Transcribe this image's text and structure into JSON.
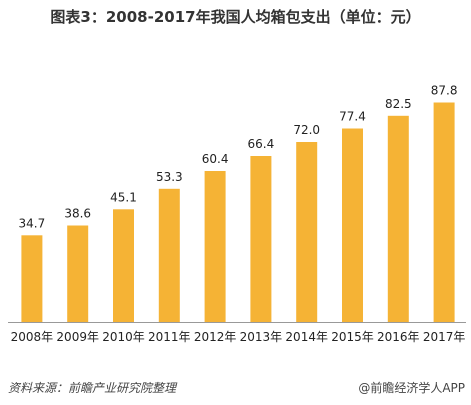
{
  "title": "图表3：2008-2017年我国人均箱包支出（单位：元）",
  "source": "资料来源：前瞻产业研究院整理",
  "brand": "@前瞻经济学人APP",
  "colors": {
    "bar": "#F5B335",
    "axis": "#999999",
    "text": "#222222"
  },
  "chart_data": {
    "type": "bar",
    "title": "图表3：2008-2017年我国人均箱包支出（单位：元）",
    "categories": [
      "2008年",
      "2009年",
      "2010年",
      "2011年",
      "2012年",
      "2013年",
      "2014年",
      "2015年",
      "2016年",
      "2017年"
    ],
    "values": [
      34.7,
      38.6,
      45.1,
      53.3,
      60.4,
      66.4,
      72.0,
      77.4,
      82.5,
      87.8
    ],
    "value_labels": [
      "34.7",
      "38.6",
      "45.1",
      "53.3",
      "60.4",
      "66.4",
      "72.0",
      "77.4",
      "82.5",
      "87.8"
    ],
    "ylim": [
      0,
      100
    ],
    "grid": false,
    "legend": "none",
    "xlabel": "",
    "ylabel": ""
  }
}
